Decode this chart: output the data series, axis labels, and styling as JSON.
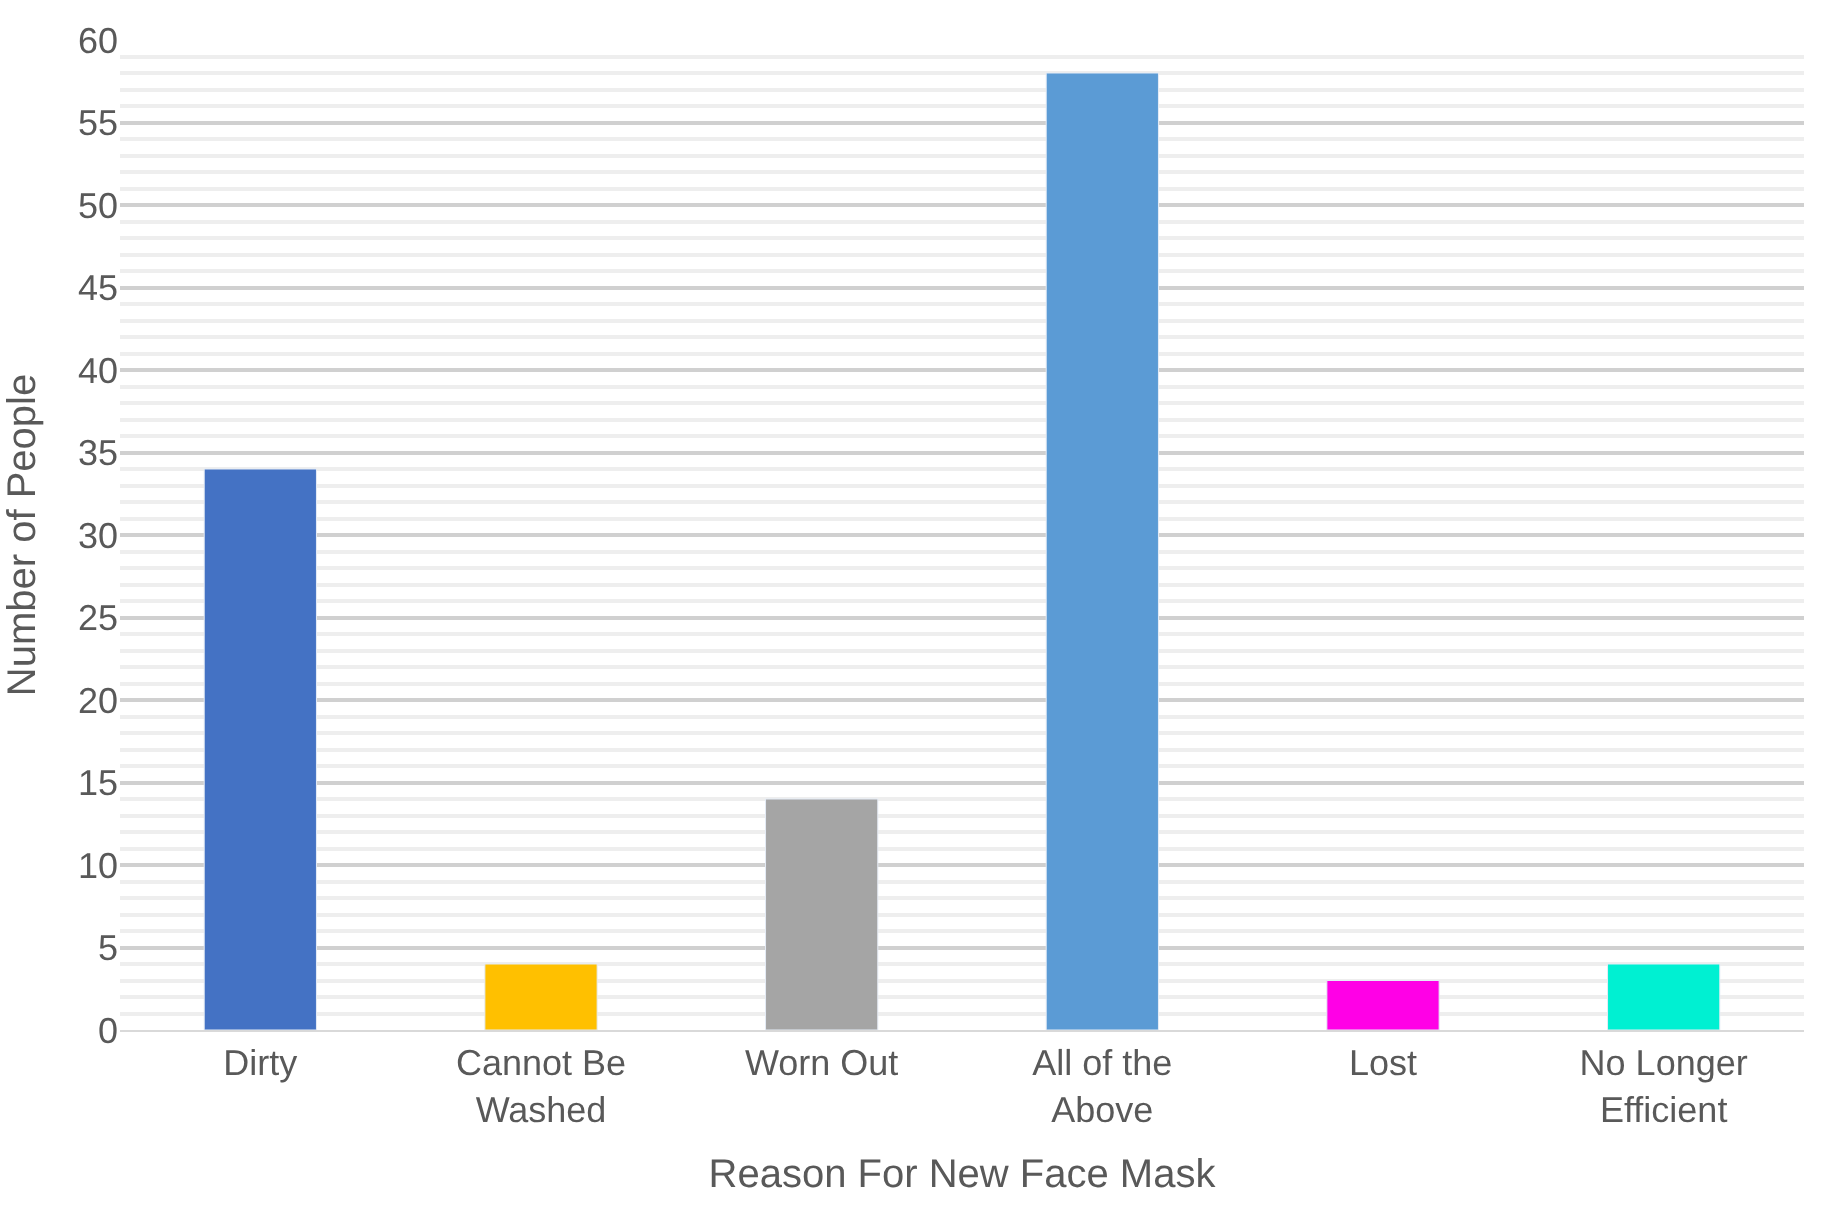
{
  "chart_data": {
    "type": "bar",
    "xlabel": "Reason For New Face Mask",
    "ylabel": "Number of People",
    "categories": [
      "Dirty",
      "Cannot Be Washed",
      "Worn Out",
      "All of the Above",
      "Lost",
      "No Longer Efficient"
    ],
    "values": [
      34,
      4,
      14,
      58,
      3,
      4
    ],
    "colors": [
      "#4472c4",
      "#ffc000",
      "#a5a5a5",
      "#5b9bd5",
      "#ff00e6",
      "#00f0d2"
    ],
    "ylim": [
      0,
      60
    ],
    "yticks": [
      0,
      {
        "value": 1,
        "label": null
      },
      {
        "value": 2,
        "label": null
      },
      {
        "value": 3,
        "label": null
      },
      {
        "value": 4,
        "label": null
      },
      5,
      {
        "value": 6,
        "label": null
      },
      {
        "value": 7,
        "label": null
      },
      {
        "value": 8,
        "label": null
      },
      {
        "value": 9,
        "label": null
      },
      10,
      {
        "value": 11,
        "label": null
      },
      {
        "value": 12,
        "label": null
      },
      {
        "value": 13,
        "label": null
      },
      {
        "value": 14,
        "label": null
      },
      15,
      {
        "value": 16,
        "label": null
      },
      {
        "value": 17,
        "label": null
      },
      {
        "value": 18,
        "label": null
      },
      {
        "value": 19,
        "label": null
      },
      20,
      {
        "value": 21,
        "label": null
      },
      {
        "value": 22,
        "label": null
      },
      {
        "value": 23,
        "label": null
      },
      {
        "value": 24,
        "label": null
      },
      25,
      {
        "value": 26,
        "label": null
      },
      {
        "value": 27,
        "label": null
      },
      {
        "value": 28,
        "label": null
      },
      {
        "value": 29,
        "label": null
      },
      30,
      {
        "value": 31,
        "label": null
      },
      {
        "value": 32,
        "label": null
      },
      {
        "value": 33,
        "label": null
      },
      {
        "value": 34,
        "label": null
      },
      35,
      {
        "value": 36,
        "label": null
      },
      {
        "value": 37,
        "label": null
      },
      {
        "value": 38,
        "label": null
      },
      {
        "value": 39,
        "label": null
      },
      40,
      {
        "value": 41,
        "label": null
      },
      {
        "value": 42,
        "label": null
      },
      {
        "value": 43,
        "label": null
      },
      {
        "value": 44,
        "label": null
      },
      45,
      {
        "value": 46,
        "label": null
      },
      {
        "value": 47,
        "label": null
      },
      {
        "value": 48,
        "label": null
      },
      {
        "value": 49,
        "label": null
      },
      50,
      {
        "value": 51,
        "label": null
      },
      {
        "value": 52,
        "label": null
      },
      {
        "value": 53,
        "label": null
      },
      {
        "value": 54,
        "label": null
      },
      55,
      {
        "value": 56,
        "label": null
      },
      {
        "value": 57,
        "label": null
      },
      {
        "value": 58,
        "label": null
      },
      {
        "value": 59,
        "label": null
      },
      60
    ],
    "grid": "y"
  }
}
